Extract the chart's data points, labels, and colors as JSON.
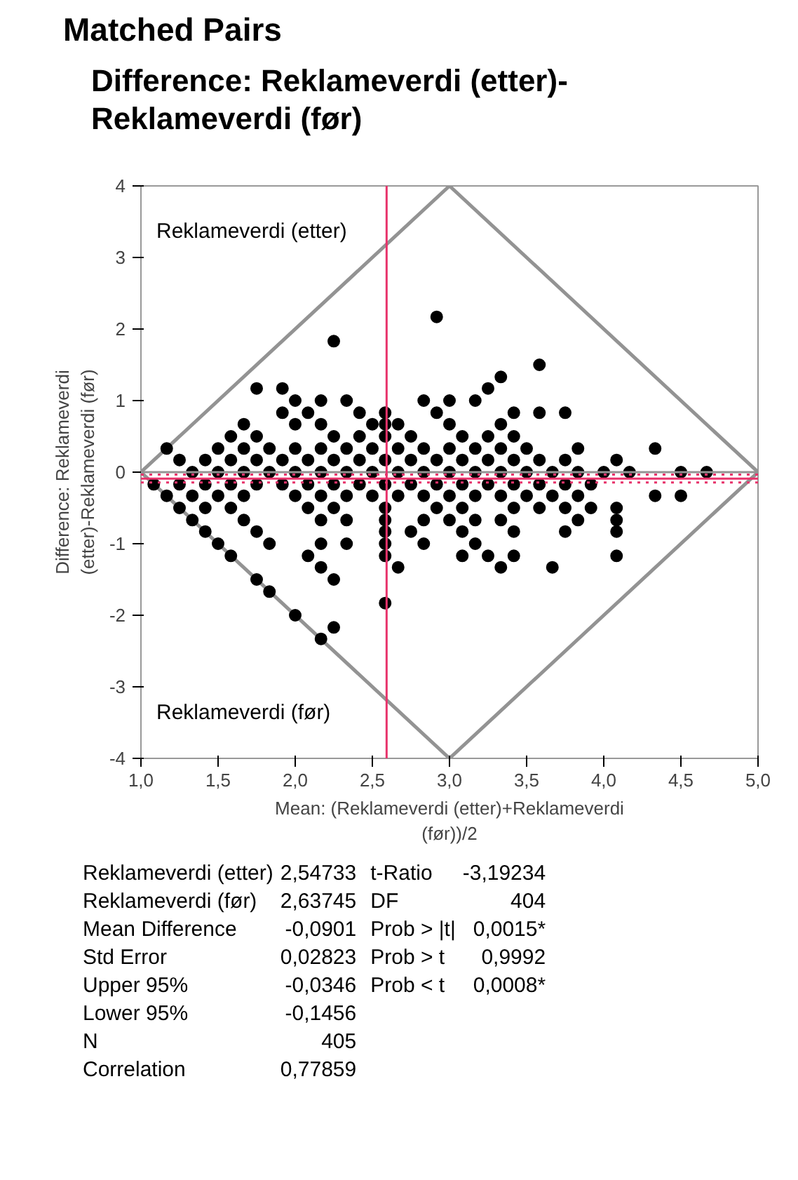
{
  "chart_data": {
    "type": "scatter",
    "title": "Matched Pairs",
    "subtitle": "Difference: Reklameverdi (etter)-Reklameverdi (før)",
    "xlabel": "Mean: (Reklameverdi (etter)+Reklameverdi (før))/2",
    "ylabel": "Difference: Reklameverdi (etter)-Reklameverdi (før)",
    "xlim": [
      1,
      5
    ],
    "ylim": [
      -4,
      4
    ],
    "xticks": [
      {
        "value": 1,
        "label": "1,0"
      },
      {
        "value": 1.5,
        "label": "1,5"
      },
      {
        "value": 2,
        "label": "2,0"
      },
      {
        "value": 2.5,
        "label": "2,5"
      },
      {
        "value": 3,
        "label": "3,0"
      },
      {
        "value": 3.5,
        "label": "3,5"
      },
      {
        "value": 4,
        "label": "4,0"
      },
      {
        "value": 4.5,
        "label": "4,5"
      },
      {
        "value": 5,
        "label": "5,0"
      }
    ],
    "yticks": [
      -4,
      -3,
      -2,
      -1,
      0,
      1,
      2,
      3,
      4
    ],
    "grid": false,
    "marker": "circle",
    "series": [
      {
        "type": "line",
        "name": "Reklameverdi (etter)",
        "color": "#939393",
        "x": [
          1,
          3,
          5
        ],
        "values": [
          0,
          4,
          0
        ],
        "line_style": "solid",
        "marker": "none"
      },
      {
        "type": "line",
        "name": "Reklameverdi (før)",
        "color": "#939393",
        "x": [
          1,
          3,
          5
        ],
        "values": [
          0,
          -4,
          0
        ],
        "line_style": "solid",
        "marker": "none"
      },
      {
        "color": "#000000",
        "x": [
          2.917,
          2.25,
          3.583,
          3.333,
          1.75,
          1.917,
          3.25,
          2,
          2.167,
          2.333,
          2.833,
          3,
          3.167,
          1.917,
          2.083,
          2.417,
          2.583,
          2.917,
          3.417,
          3.583,
          3.75,
          1.667,
          2,
          2.167,
          2.5,
          2.583,
          2.667,
          3,
          3.333,
          1.583,
          1.75,
          2.25,
          2.417,
          2.583,
          2.75,
          3.083,
          3.25,
          3.417,
          1.167,
          1.5,
          1.667,
          1.833,
          2,
          2.167,
          2.333,
          2.5,
          2.667,
          2.833,
          3,
          3.167,
          3.333,
          3.5,
          3.833,
          4.333,
          1.25,
          1.417,
          1.583,
          1.75,
          1.917,
          2.083,
          2.25,
          2.417,
          2.583,
          2.75,
          2.917,
          3.083,
          3.25,
          3.417,
          3.583,
          3.75,
          4.083,
          1.333,
          1.5,
          1.667,
          1.833,
          2,
          2.167,
          2.333,
          2.5,
          2.667,
          2.833,
          3,
          3.167,
          3.333,
          3.5,
          3.667,
          3.833,
          4,
          4.167,
          4.5,
          4.667,
          1.083,
          1.25,
          1.417,
          1.583,
          1.75,
          1.917,
          2.083,
          2.25,
          2.417,
          2.583,
          2.75,
          2.917,
          3.083,
          3.25,
          3.417,
          3.583,
          3.75,
          3.917,
          1.167,
          1.333,
          1.5,
          1.667,
          2,
          2.167,
          2.333,
          2.5,
          2.667,
          2.833,
          3,
          3.167,
          3.333,
          3.5,
          3.667,
          3.833,
          4.333,
          4.5,
          1.25,
          1.417,
          1.583,
          2.083,
          2.25,
          2.583,
          2.917,
          3.083,
          3.417,
          3.583,
          3.75,
          3.917,
          4.083,
          1.333,
          1.667,
          2.167,
          2.333,
          2.583,
          2.833,
          3,
          3.167,
          3.333,
          3.833,
          4.083,
          1.417,
          1.75,
          2.583,
          2.75,
          3.083,
          3.417,
          3.75,
          4.083,
          1.5,
          1.833,
          2.167,
          2.333,
          2.583,
          2.833,
          3.167,
          1.583,
          2.083,
          2.583,
          3.083,
          3.25,
          3.417,
          4.083,
          2.167,
          2.667,
          3.333,
          3.667,
          1.75,
          2.25,
          1.833,
          2.583,
          2,
          2.25,
          2.167
        ],
        "values": [
          2.17,
          1.83,
          1.5,
          1.33,
          1.17,
          1.17,
          1.17,
          1,
          1,
          1,
          1,
          1,
          1,
          0.83,
          0.83,
          0.83,
          0.83,
          0.83,
          0.83,
          0.83,
          0.83,
          0.67,
          0.67,
          0.67,
          0.67,
          0.67,
          0.67,
          0.67,
          0.67,
          0.5,
          0.5,
          0.5,
          0.5,
          0.5,
          0.5,
          0.5,
          0.5,
          0.5,
          0.33,
          0.33,
          0.33,
          0.33,
          0.33,
          0.33,
          0.33,
          0.33,
          0.33,
          0.33,
          0.33,
          0.33,
          0.33,
          0.33,
          0.33,
          0.33,
          0.17,
          0.17,
          0.17,
          0.17,
          0.17,
          0.17,
          0.17,
          0.17,
          0.17,
          0.17,
          0.17,
          0.17,
          0.17,
          0.17,
          0.17,
          0.17,
          0.17,
          0,
          0,
          0,
          0,
          0,
          0,
          0,
          0,
          0,
          0,
          0,
          0,
          0,
          0,
          0,
          0,
          0,
          0,
          0,
          0,
          -0.17,
          -0.17,
          -0.17,
          -0.17,
          -0.17,
          -0.17,
          -0.17,
          -0.17,
          -0.17,
          -0.17,
          -0.17,
          -0.17,
          -0.17,
          -0.17,
          -0.17,
          -0.17,
          -0.17,
          -0.17,
          -0.33,
          -0.33,
          -0.33,
          -0.33,
          -0.33,
          -0.33,
          -0.33,
          -0.33,
          -0.33,
          -0.33,
          -0.33,
          -0.33,
          -0.33,
          -0.33,
          -0.33,
          -0.33,
          -0.33,
          -0.33,
          -0.5,
          -0.5,
          -0.5,
          -0.5,
          -0.5,
          -0.5,
          -0.5,
          -0.5,
          -0.5,
          -0.5,
          -0.5,
          -0.5,
          -0.5,
          -0.67,
          -0.67,
          -0.67,
          -0.67,
          -0.67,
          -0.67,
          -0.67,
          -0.67,
          -0.67,
          -0.67,
          -0.67,
          -0.83,
          -0.83,
          -0.83,
          -0.83,
          -0.83,
          -0.83,
          -0.83,
          -0.83,
          -1,
          -1,
          -1,
          -1,
          -1,
          -1,
          -1,
          -1.17,
          -1.17,
          -1.17,
          -1.17,
          -1.17,
          -1.17,
          -1.17,
          -1.33,
          -1.33,
          -1.33,
          -1.33,
          -1.5,
          -1.5,
          -1.67,
          -1.83,
          -2,
          -2.17,
          -2.33
        ]
      }
    ],
    "ref_lines": [
      {
        "axis": "y",
        "value": 0,
        "color": "#939393",
        "line_style": "solid"
      },
      {
        "axis": "y",
        "value": -0.0901,
        "color": "#e8336b",
        "line_style": "solid"
      },
      {
        "axis": "y",
        "value": -0.0346,
        "color": "#e8336b",
        "line_style": "dotted"
      },
      {
        "axis": "y",
        "value": -0.1456,
        "color": "#e8336b",
        "line_style": "dotted"
      },
      {
        "axis": "x",
        "value": 2.5924,
        "color": "#e8336b",
        "line_style": "solid"
      }
    ],
    "annotations": [
      "Reklameverdi (etter)",
      "2,54733",
      "t-Ratio",
      "-3,19234",
      "Reklameverdi (før)",
      "2,63745",
      "DF",
      "404",
      "Mean Difference",
      "-0,0901",
      "Prob > |t|",
      "0,0015*",
      "Std Error",
      "0,02823",
      "Prob > t",
      "0,9992",
      "Upper 95%",
      "-0,0346",
      "Prob < t",
      "0,0008*",
      "Lower 95%",
      "-0,1456",
      "N",
      "405",
      "Correlation",
      "0,77859"
    ]
  }
}
